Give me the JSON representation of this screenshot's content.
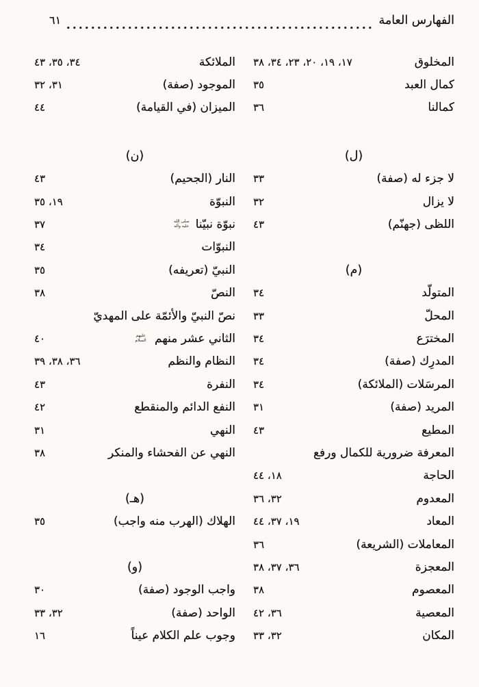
{
  "header": {
    "title": "الفهارس العامة",
    "page_number": "٦١"
  },
  "index": {
    "rows": [
      {
        "right": {
          "term": "المخلوق",
          "pages": "١٧، ١٩، ٢٠، ٢٣، ٣٤، ٣٨"
        },
        "left": {
          "term": "الملائكة",
          "pages": "٣٤، ٣٥، ٤٣"
        }
      },
      {
        "right": {
          "term": "كمال العبد",
          "pages": "٣٥"
        },
        "left": {
          "term": "الموجود (صفة)",
          "pages": "٣١، ٣٢"
        }
      },
      {
        "right": {
          "term": "كمالنا",
          "pages": "٣٦"
        },
        "left": {
          "term": "الميزان (في القيامة)",
          "pages": "٤٤"
        }
      },
      {
        "spacer": true
      },
      {
        "right": {
          "section": "(ل)"
        },
        "left": {
          "section": "(ن)"
        }
      },
      {
        "right": {
          "term": "لا جزء له (صفة)",
          "pages": "٣٣"
        },
        "left": {
          "term": "النار (الجحيم)",
          "pages": "٤٣"
        }
      },
      {
        "right": {
          "term": "لا يزال",
          "pages": "٣٢"
        },
        "left": {
          "term": "النبوّة",
          "pages": "١٩، ٣٥"
        }
      },
      {
        "right": {
          "term": "اللظى (جهنّم)",
          "pages": "٤٣"
        },
        "left": {
          "term": "نبوّة نبيّنا",
          "honorific": "صلى الله عليه وآله",
          "pages": "٣٧"
        }
      },
      {
        "right": null,
        "left": {
          "term": "النبوّات",
          "pages": "٣٤"
        }
      },
      {
        "right": {
          "section": "(م)"
        },
        "left": {
          "term": "النبيّ (تعريفه)",
          "pages": "٣٥"
        }
      },
      {
        "right": {
          "term": "المتولّد",
          "pages": "٣٤"
        },
        "left": {
          "term": "النصّ",
          "pages": "٣٨"
        }
      },
      {
        "right": {
          "term": "المحلّ",
          "pages": "٣٣"
        },
        "left": {
          "term": "نصّ النبيّ والأئمّة على المهديّ",
          "pages": ""
        }
      },
      {
        "right": {
          "term": "المخترَع",
          "pages": "٣٤"
        },
        "left": {
          "term": "الثاني عشر منهم",
          "honorific": "عليهم السلام",
          "pages": "٤٠"
        }
      },
      {
        "right": {
          "term": "المدرِك (صفة)",
          "pages": "٣٤"
        },
        "left": {
          "term": "النظام والنظم",
          "pages": "٣٦، ٣٨، ٣٩"
        }
      },
      {
        "right": {
          "term": "المرسَلات (الملائكة)",
          "pages": "٣٤"
        },
        "left": {
          "term": "النفرة",
          "pages": "٤٣"
        }
      },
      {
        "right": {
          "term": "المريد (صفة)",
          "pages": "٣١"
        },
        "left": {
          "term": "النفع الدائم والمنقطع",
          "pages": "٤٢"
        }
      },
      {
        "right": {
          "term": "المطيع",
          "pages": "٤٣"
        },
        "left": {
          "term": "النهي",
          "pages": "٣١"
        }
      },
      {
        "right": {
          "term": "المعرفة ضرورية للكمال ورفع",
          "pages": ""
        },
        "left": {
          "term": "النهي عن الفحشاء والمنكر",
          "pages": "٣٨"
        }
      },
      {
        "right": {
          "term": "الحاجة",
          "pages": "١٨، ٤٤"
        },
        "left": null
      },
      {
        "right": {
          "term": "المعدوم",
          "pages": "٣٢، ٣٦"
        },
        "left": {
          "section": "(هـ)"
        }
      },
      {
        "right": {
          "term": "المعاد",
          "pages": "١٩، ٣٧، ٤٤"
        },
        "left": {
          "term": "الهلاك (الهرب منه واجب)",
          "pages": "٣٥"
        }
      },
      {
        "right": {
          "term": "المعاملات (الشريعة)",
          "pages": "٣٦"
        },
        "left": null
      },
      {
        "right": {
          "term": "المعجزة",
          "pages": "٣٦، ٣٧، ٣٨"
        },
        "left": {
          "section": "(و)"
        }
      },
      {
        "right": {
          "term": "المعصوم",
          "pages": "٣٨"
        },
        "left": {
          "term": "واجب الوجود (صفة)",
          "pages": "٣٠"
        }
      },
      {
        "right": {
          "term": "المعصية",
          "pages": "٣٦، ٤٢"
        },
        "left": {
          "term": "الواحد (صفة)",
          "pages": "٣٢، ٣٣"
        }
      },
      {
        "right": {
          "term": "المكان",
          "pages": "٣٢، ٣٣"
        },
        "left": {
          "term": "وجوب علم الكلام عيناً",
          "pages": "١٦"
        }
      }
    ]
  }
}
